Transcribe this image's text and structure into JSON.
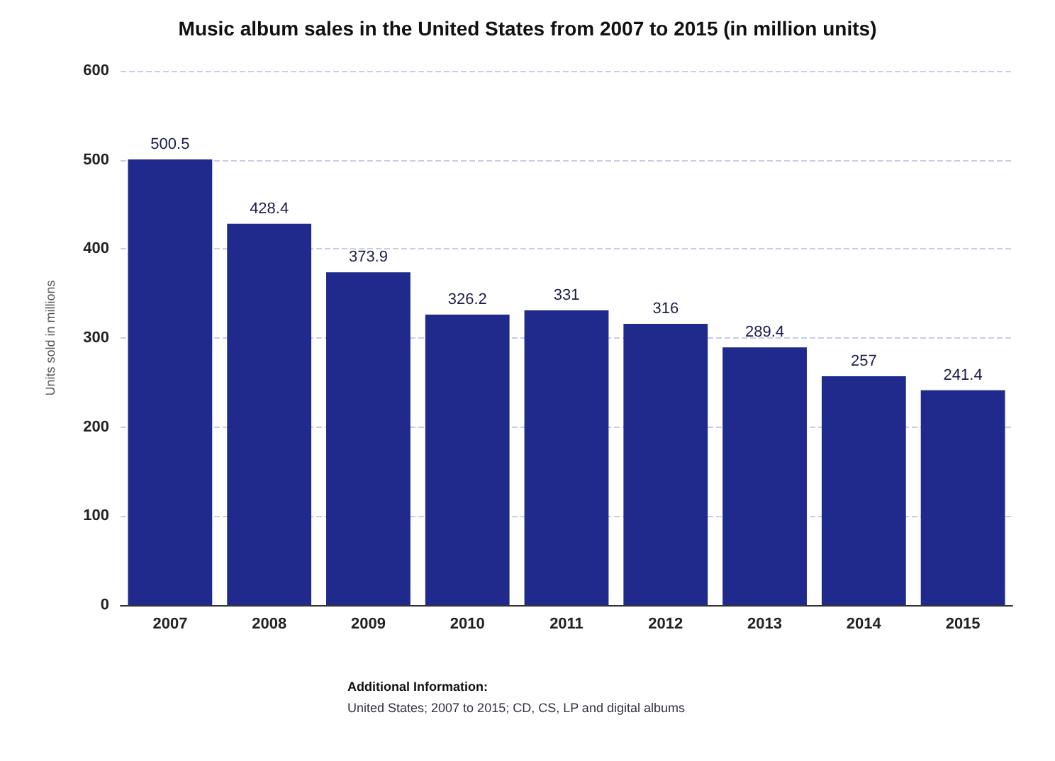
{
  "chart_data": {
    "type": "bar",
    "title": "Music album sales in the United States from 2007 to 2015 (in million units)",
    "ylabel": "Units sold in millions",
    "categories": [
      "2007",
      "2008",
      "2009",
      "2010",
      "2011",
      "2012",
      "2013",
      "2014",
      "2015"
    ],
    "values": [
      500.5,
      428.4,
      373.9,
      326.2,
      331,
      316,
      289.4,
      257,
      241.4
    ],
    "color": "#1f2a8c",
    "ylim": [
      0,
      600
    ],
    "yticks": [
      0,
      100,
      200,
      300,
      400,
      500,
      600
    ],
    "grid": "y",
    "data_labels": true,
    "annotations": [
      "Additional Information:",
      "United States; 2007 to 2015; CD, CS, LP and digital albums"
    ]
  }
}
